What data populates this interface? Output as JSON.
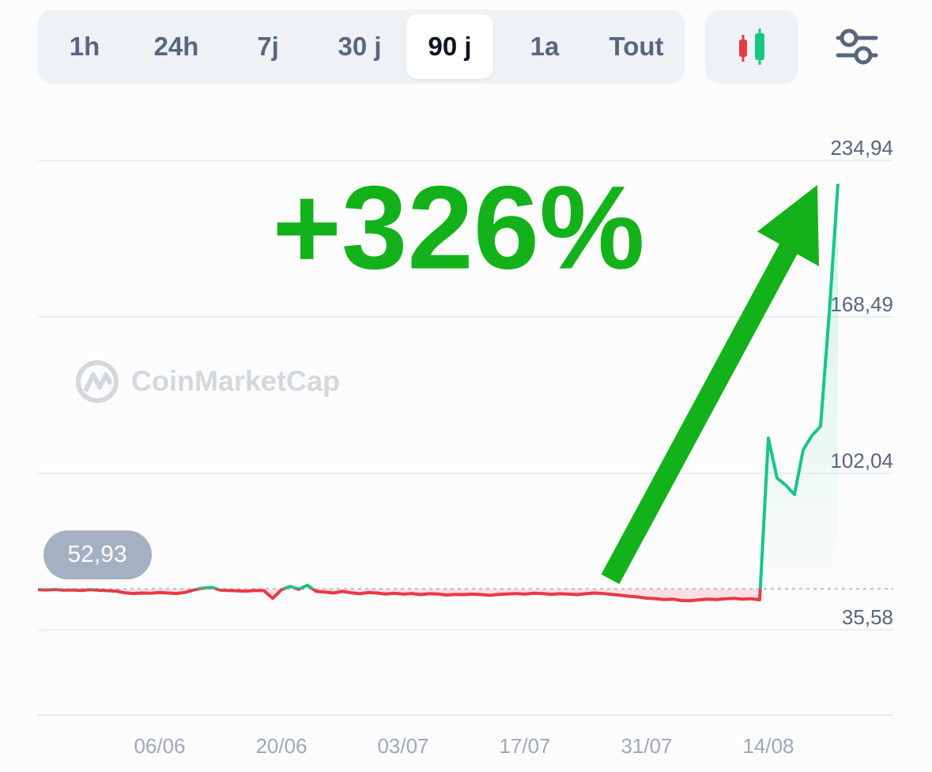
{
  "tabs": [
    "1h",
    "24h",
    "7j",
    "30 j",
    "90 j",
    "1a",
    "Tout"
  ],
  "active_tab": 4,
  "watermark": "CoinMarketCap",
  "chart_data": {
    "type": "line",
    "annotation": "+326%",
    "categories": [
      null,
      null,
      null,
      null,
      null,
      null,
      null,
      null,
      null,
      null,
      null,
      null,
      null,
      null,
      "06/06",
      null,
      null,
      null,
      null,
      null,
      null,
      null,
      null,
      null,
      null,
      null,
      null,
      null,
      "20/06",
      null,
      null,
      null,
      null,
      null,
      null,
      null,
      null,
      null,
      null,
      null,
      null,
      null,
      "03/07",
      null,
      null,
      null,
      null,
      null,
      null,
      null,
      null,
      null,
      null,
      null,
      null,
      null,
      "17/07",
      null,
      null,
      null,
      null,
      null,
      null,
      null,
      null,
      null,
      null,
      null,
      null,
      null,
      "31/07",
      null,
      null,
      null,
      null,
      null,
      null,
      null,
      null,
      null,
      null,
      null,
      null,
      null,
      "14/08",
      null,
      null,
      null,
      null,
      null,
      null,
      null,
      null
    ],
    "values": [
      52.6,
      52.5,
      52.7,
      52.4,
      52.5,
      52.3,
      52.6,
      52.4,
      52.2,
      52.0,
      51.3,
      51.0,
      51.2,
      51.1,
      51.4,
      51.2,
      51.0,
      51.5,
      52.6,
      53.3,
      53.6,
      52.4,
      52.3,
      52.1,
      52.0,
      52.3,
      52.2,
      48.9,
      52.6,
      54.0,
      52.8,
      54.5,
      51.9,
      51.6,
      51.2,
      51.9,
      51.3,
      50.9,
      51.4,
      51.2,
      50.8,
      51.1,
      50.7,
      51.0,
      50.5,
      50.9,
      50.8,
      50.3,
      50.6,
      50.5,
      50.7,
      50.5,
      50.2,
      50.6,
      50.8,
      51.0,
      50.7,
      51.1,
      51.0,
      50.6,
      50.9,
      50.7,
      50.5,
      50.9,
      51.2,
      51.0,
      50.6,
      50.2,
      49.8,
      49.5,
      49.0,
      48.8,
      48.4,
      48.6,
      48.0,
      47.9,
      48.3,
      48.6,
      48.4,
      48.7,
      48.9,
      48.6,
      48.8,
      48.3,
      117,
      100,
      97,
      93,
      112,
      118,
      122,
      170,
      225
    ],
    "reference_line": {
      "value": 52.93,
      "label": "52,93"
    },
    "up_color": "#16c784",
    "down_color": "#ea3943",
    "ylim": [
      35.58,
      234.94
    ],
    "yticks": [
      {
        "value": 35.58,
        "label": "35,58"
      },
      {
        "value": 102.04,
        "label": "102,04"
      },
      {
        "value": 168.49,
        "label": "168,49"
      },
      {
        "value": 234.94,
        "label": "234,94"
      }
    ],
    "grid": true
  }
}
